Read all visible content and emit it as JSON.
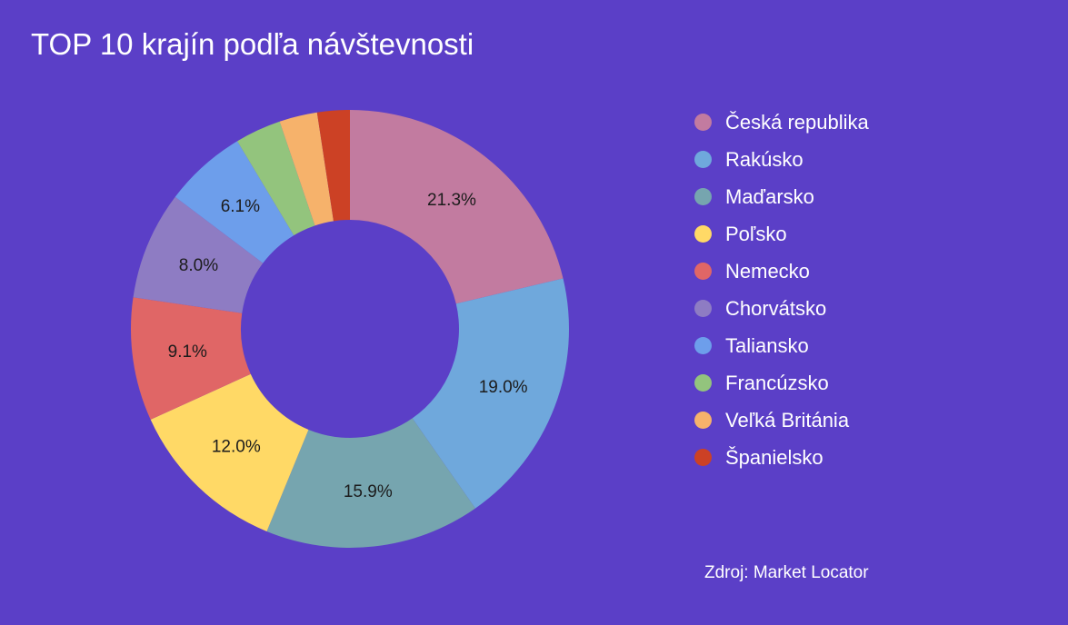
{
  "chart_data": {
    "type": "pie",
    "title": "TOP 10 krajín podľa návštevnosti",
    "source": "Zdroj: Market Locator",
    "legend_position": "right",
    "donut": true,
    "slices": [
      {
        "name": "Česká republika",
        "value": 21.3,
        "label": "21.3%",
        "color": "#c27ba0"
      },
      {
        "name": "Rakúsko",
        "value": 19.0,
        "label": "19.0%",
        "color": "#6fa8dc"
      },
      {
        "name": "Maďarsko",
        "value": 15.9,
        "label": "15.9%",
        "color": "#76a5af"
      },
      {
        "name": "Poľsko",
        "value": 12.0,
        "label": "12.0%",
        "color": "#ffd966"
      },
      {
        "name": "Nemecko",
        "value": 9.1,
        "label": "9.1%",
        "color": "#e06666"
      },
      {
        "name": "Chorvátsko",
        "value": 8.0,
        "label": "8.0%",
        "color": "#8e7cc3"
      },
      {
        "name": "Taliansko",
        "value": 6.1,
        "label": "6.1%",
        "color": "#6d9eeb"
      },
      {
        "name": "Francúzsko",
        "value": 3.4,
        "label": "",
        "color": "#93c47d"
      },
      {
        "name": "Veľká Británia",
        "value": 2.8,
        "label": "",
        "color": "#f6b26b"
      },
      {
        "name": "Španielsko",
        "value": 2.4,
        "label": "",
        "color": "#cc4125"
      }
    ]
  }
}
